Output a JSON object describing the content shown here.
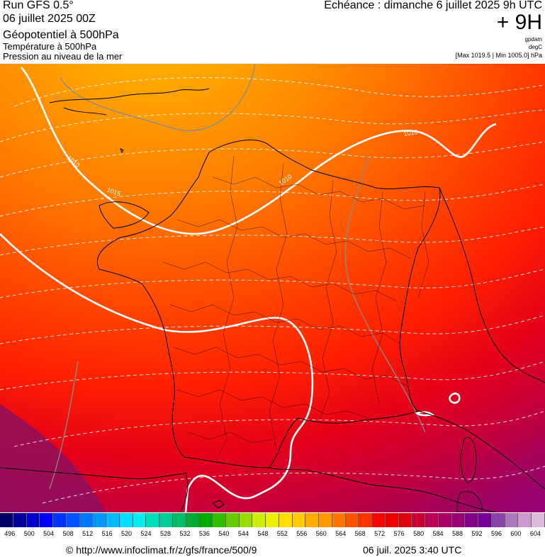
{
  "header": {
    "run_title": "Run GFS 0.5°",
    "run_date": "06 juillet 2025 00Z",
    "layer_geopotential": "Géopotentiel à 500hPa",
    "layer_temperature": "Température à 500hPa",
    "layer_pressure": "Pression au niveau de la mer",
    "forecast_label": "Echéance : dimanche 6 juillet 2025 9h UTC",
    "lead_time": "+ 9H",
    "unit_geopotential": "gpdam",
    "unit_temperature": "degC",
    "pressure_minmax": "[Max 1019.5 | Min 1005.0] hPa"
  },
  "map": {
    "isobar_labels": [
      {
        "text": "1010"
      },
      {
        "text": "1010"
      },
      {
        "text": "1010"
      },
      {
        "text": "1015"
      }
    ],
    "colors": {
      "isobar": "#ffffff",
      "isotherm": "#ffffff",
      "coast": "#000000"
    }
  },
  "scale": {
    "colors": [
      "#000066",
      "#000099",
      "#0000cc",
      "#0000ff",
      "#0033ff",
      "#0055ff",
      "#0077ff",
      "#0099ff",
      "#00bbff",
      "#00ddff",
      "#00eeee",
      "#00ddbb",
      "#00cc99",
      "#00bb66",
      "#00aa33",
      "#00aa00",
      "#33bb00",
      "#66cc00",
      "#99dd00",
      "#ccee00",
      "#eeee00",
      "#ffdd00",
      "#ffcc00",
      "#ffaa00",
      "#ff9900",
      "#ff7700",
      "#ff5500",
      "#ff3300",
      "#ff0000",
      "#ee0000",
      "#dd0011",
      "#cc0033",
      "#bb0055",
      "#aa0066",
      "#990077",
      "#880088",
      "#770099",
      "#8844aa",
      "#aa77bb",
      "#cc99cc",
      "#ddbbdd"
    ],
    "labels": [
      "496",
      "500",
      "504",
      "508",
      "512",
      "516",
      "520",
      "524",
      "528",
      "532",
      "536",
      "540",
      "544",
      "548",
      "552",
      "556",
      "560",
      "564",
      "568",
      "572",
      "576",
      "580",
      "584",
      "588",
      "592",
      "596",
      "600",
      "604"
    ]
  },
  "footer": {
    "url": "© http://www.infoclimat.fr/z/gfs/france/500/9",
    "generated": "06 juil. 2025  3:40 UTC"
  }
}
